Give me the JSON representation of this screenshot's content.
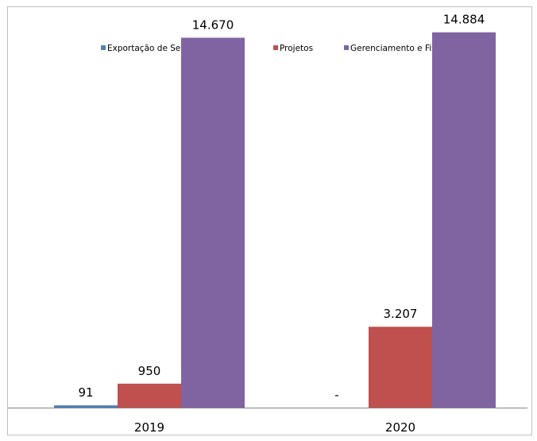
{
  "chart_data": {
    "type": "bar",
    "categories": [
      "2019",
      "2020"
    ],
    "series": [
      {
        "name": "Exportação de Serviços e Outros",
        "color": "#4f81bd",
        "values": [
          91,
          0
        ],
        "labels": [
          "91",
          "-"
        ]
      },
      {
        "name": "Projetos",
        "color": "#c0504d",
        "values": [
          950,
          3207
        ],
        "labels": [
          "950",
          "3.207"
        ]
      },
      {
        "name": "Gerenciamento e Fiscalização",
        "color": "#8064a2",
        "values": [
          14670,
          14884
        ],
        "labels": [
          "14.670",
          "14.884"
        ]
      }
    ],
    "ylim": [
      0,
      15000
    ],
    "legend_position": "top",
    "grid": false,
    "y_axis_visible": false
  }
}
